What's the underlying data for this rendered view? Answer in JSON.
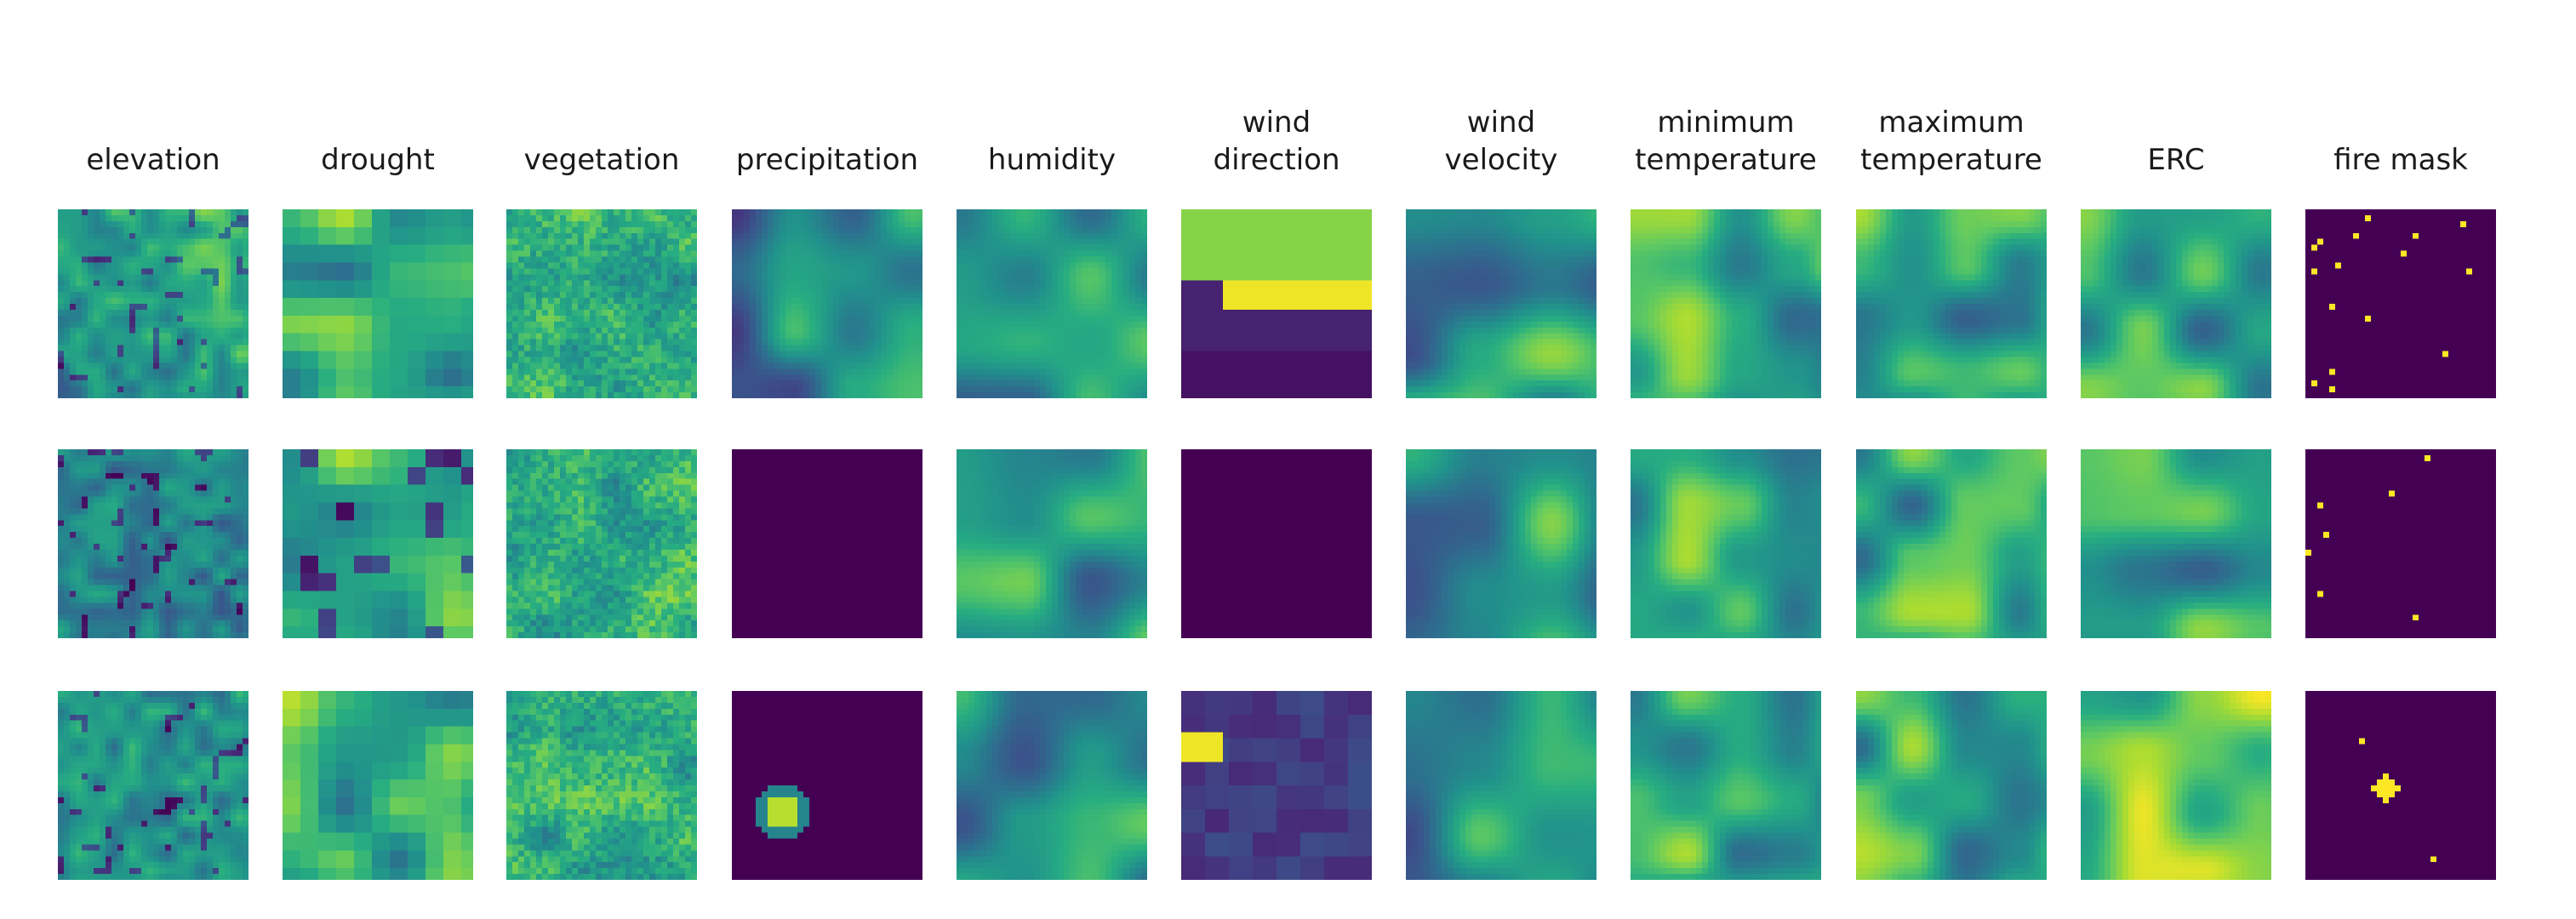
{
  "chart_data": {
    "type": "heatmap",
    "colormap": "viridis",
    "colors": {
      "low": "#440154",
      "mid_low": "#3b528b",
      "mid": "#21918c",
      "mid_high": "#5ec962",
      "high": "#fde725",
      "background": "#ffffff"
    },
    "columns": [
      "elevation",
      "drought",
      "vegetation",
      "precipitation",
      "humidity",
      "wind\ndirection",
      "wind\nvelocity",
      "minimum\ntemperature",
      "maximum\ntemperature",
      "ERC",
      "fire mask"
    ],
    "rows": 3,
    "grid": false,
    "axes_visible": false
  }
}
